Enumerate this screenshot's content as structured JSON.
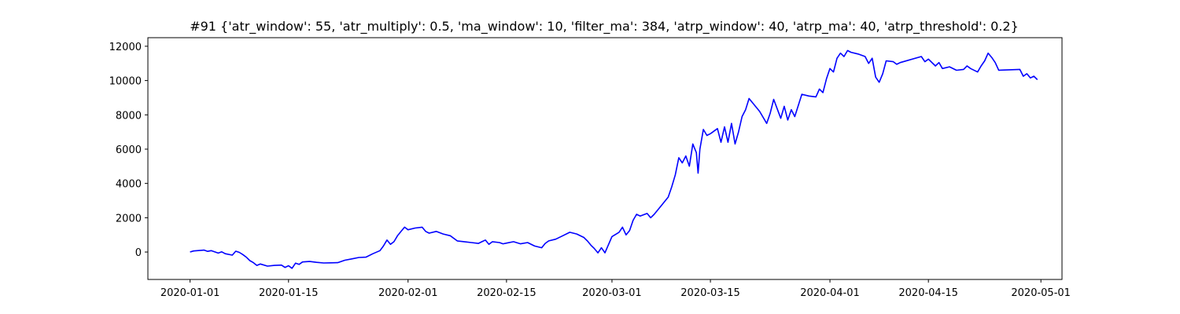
{
  "chart_data": {
    "type": "line",
    "title": "#91 {'atr_window': 55, 'atr_multiply': 0.5, 'ma_window': 10, 'filter_ma': 384, 'atrp_window': 40, 'atrp_ma': 40, 'atrp_threshold': 0.2}",
    "xlabel": "",
    "ylabel": "",
    "x_axis": {
      "type": "date",
      "range": [
        "2019-12-26",
        "2020-05-04"
      ],
      "ticks": [
        "2020-01-01",
        "2020-01-15",
        "2020-02-01",
        "2020-02-15",
        "2020-03-01",
        "2020-03-15",
        "2020-04-01",
        "2020-04-15",
        "2020-05-01"
      ]
    },
    "y_axis": {
      "range": [
        -1600,
        12500
      ],
      "ticks": [
        0,
        2000,
        4000,
        6000,
        8000,
        10000,
        12000
      ]
    },
    "grid": false,
    "legend": "none",
    "series": [
      {
        "color": "#0000ff",
        "points": [
          [
            "2020-01-01",
            0
          ],
          [
            "2020-01-01T12",
            60
          ],
          [
            "2020-01-02",
            80
          ],
          [
            "2020-01-03",
            110
          ],
          [
            "2020-01-03T12",
            40
          ],
          [
            "2020-01-04",
            80
          ],
          [
            "2020-01-05",
            -60
          ],
          [
            "2020-01-05T12",
            10
          ],
          [
            "2020-01-06",
            -100
          ],
          [
            "2020-01-07",
            -180
          ],
          [
            "2020-01-07T12",
            50
          ],
          [
            "2020-01-08",
            -20
          ],
          [
            "2020-01-08T12",
            -150
          ],
          [
            "2020-01-09",
            -300
          ],
          [
            "2020-01-09T12",
            -500
          ],
          [
            "2020-01-10",
            -620
          ],
          [
            "2020-01-10T12",
            -780
          ],
          [
            "2020-01-11",
            -700
          ],
          [
            "2020-01-12",
            -820
          ],
          [
            "2020-01-13",
            -780
          ],
          [
            "2020-01-14",
            -760
          ],
          [
            "2020-01-14T12",
            -900
          ],
          [
            "2020-01-15",
            -800
          ],
          [
            "2020-01-15T12",
            -950
          ],
          [
            "2020-01-16",
            -650
          ],
          [
            "2020-01-16T12",
            -720
          ],
          [
            "2020-01-17",
            -580
          ],
          [
            "2020-01-18",
            -550
          ],
          [
            "2020-01-19",
            -600
          ],
          [
            "2020-01-20",
            -640
          ],
          [
            "2020-01-21",
            -630
          ],
          [
            "2020-01-22",
            -620
          ],
          [
            "2020-01-23",
            -480
          ],
          [
            "2020-01-24",
            -400
          ],
          [
            "2020-01-25",
            -320
          ],
          [
            "2020-01-26",
            -300
          ],
          [
            "2020-01-27",
            -100
          ],
          [
            "2020-01-28",
            80
          ],
          [
            "2020-01-28T12",
            350
          ],
          [
            "2020-01-29",
            700
          ],
          [
            "2020-01-29T12",
            450
          ],
          [
            "2020-01-30",
            600
          ],
          [
            "2020-01-30T12",
            950
          ],
          [
            "2020-01-31",
            1200
          ],
          [
            "2020-01-31T12",
            1450
          ],
          [
            "2020-02-01",
            1300
          ],
          [
            "2020-02-02",
            1400
          ],
          [
            "2020-02-03",
            1450
          ],
          [
            "2020-02-03T12",
            1200
          ],
          [
            "2020-02-04",
            1100
          ],
          [
            "2020-02-05",
            1200
          ],
          [
            "2020-02-06",
            1050
          ],
          [
            "2020-02-07",
            950
          ],
          [
            "2020-02-08",
            650
          ],
          [
            "2020-02-09",
            600
          ],
          [
            "2020-02-10",
            550
          ],
          [
            "2020-02-11",
            500
          ],
          [
            "2020-02-11T12",
            600
          ],
          [
            "2020-02-12",
            700
          ],
          [
            "2020-02-12T12",
            450
          ],
          [
            "2020-02-13",
            600
          ],
          [
            "2020-02-14",
            550
          ],
          [
            "2020-02-14T12",
            480
          ],
          [
            "2020-02-15",
            520
          ],
          [
            "2020-02-16",
            600
          ],
          [
            "2020-02-17",
            480
          ],
          [
            "2020-02-18",
            550
          ],
          [
            "2020-02-19",
            350
          ],
          [
            "2020-02-20",
            250
          ],
          [
            "2020-02-20T12",
            500
          ],
          [
            "2020-02-21",
            650
          ],
          [
            "2020-02-22",
            750
          ],
          [
            "2020-02-23",
            950
          ],
          [
            "2020-02-24",
            1150
          ],
          [
            "2020-02-25",
            1050
          ],
          [
            "2020-02-26",
            850
          ],
          [
            "2020-02-26T12",
            650
          ],
          [
            "2020-02-27",
            400
          ],
          [
            "2020-02-27T12",
            200
          ],
          [
            "2020-02-28",
            -50
          ],
          [
            "2020-02-28T12",
            250
          ],
          [
            "2020-02-29",
            -50
          ],
          [
            "2020-03-01",
            900
          ],
          [
            "2020-03-02",
            1150
          ],
          [
            "2020-03-02T12",
            1450
          ],
          [
            "2020-03-03",
            1000
          ],
          [
            "2020-03-03T12",
            1250
          ],
          [
            "2020-03-04",
            1850
          ],
          [
            "2020-03-04T12",
            2200
          ],
          [
            "2020-03-05",
            2100
          ],
          [
            "2020-03-06",
            2250
          ],
          [
            "2020-03-06T12",
            2000
          ],
          [
            "2020-03-07",
            2200
          ],
          [
            "2020-03-08",
            2700
          ],
          [
            "2020-03-09",
            3200
          ],
          [
            "2020-03-09T12",
            3800
          ],
          [
            "2020-03-10",
            4500
          ],
          [
            "2020-03-10T12",
            5500
          ],
          [
            "2020-03-11",
            5200
          ],
          [
            "2020-03-11T12",
            5600
          ],
          [
            "2020-03-12",
            5000
          ],
          [
            "2020-03-12T12",
            6300
          ],
          [
            "2020-03-13",
            5800
          ],
          [
            "2020-03-13T06",
            4600
          ],
          [
            "2020-03-13T12",
            6000
          ],
          [
            "2020-03-14",
            7150
          ],
          [
            "2020-03-14T12",
            6800
          ],
          [
            "2020-03-15",
            6900
          ],
          [
            "2020-03-16",
            7200
          ],
          [
            "2020-03-16T12",
            6400
          ],
          [
            "2020-03-17",
            7300
          ],
          [
            "2020-03-17T12",
            6400
          ],
          [
            "2020-03-18",
            7500
          ],
          [
            "2020-03-18T12",
            6300
          ],
          [
            "2020-03-19",
            7000
          ],
          [
            "2020-03-19T12",
            7900
          ],
          [
            "2020-03-20",
            8300
          ],
          [
            "2020-03-20T12",
            8950
          ],
          [
            "2020-03-21",
            8700
          ],
          [
            "2020-03-22",
            8200
          ],
          [
            "2020-03-23",
            7500
          ],
          [
            "2020-03-23T12",
            8100
          ],
          [
            "2020-03-24",
            8900
          ],
          [
            "2020-03-25",
            7800
          ],
          [
            "2020-03-25T12",
            8500
          ],
          [
            "2020-03-26",
            7700
          ],
          [
            "2020-03-26T12",
            8300
          ],
          [
            "2020-03-27",
            7900
          ],
          [
            "2020-03-28",
            9200
          ],
          [
            "2020-03-29",
            9100
          ],
          [
            "2020-03-30",
            9050
          ],
          [
            "2020-03-30T12",
            9500
          ],
          [
            "2020-03-31",
            9300
          ],
          [
            "2020-03-31T12",
            10100
          ],
          [
            "2020-04-01",
            10700
          ],
          [
            "2020-04-01T12",
            10500
          ],
          [
            "2020-04-02",
            11300
          ],
          [
            "2020-04-02T12",
            11600
          ],
          [
            "2020-04-03",
            11400
          ],
          [
            "2020-04-03T12",
            11750
          ],
          [
            "2020-04-04",
            11650
          ],
          [
            "2020-04-05",
            11550
          ],
          [
            "2020-04-06",
            11400
          ],
          [
            "2020-04-06T12",
            11000
          ],
          [
            "2020-04-07",
            11300
          ],
          [
            "2020-04-07T12",
            10200
          ],
          [
            "2020-04-08",
            9900
          ],
          [
            "2020-04-08T12",
            10400
          ],
          [
            "2020-04-09",
            11150
          ],
          [
            "2020-04-10",
            11100
          ],
          [
            "2020-04-10T12",
            10950
          ],
          [
            "2020-04-11",
            11050
          ],
          [
            "2020-04-14",
            11400
          ],
          [
            "2020-04-14T12",
            11100
          ],
          [
            "2020-04-15",
            11250
          ],
          [
            "2020-04-16",
            10850
          ],
          [
            "2020-04-16T12",
            11050
          ],
          [
            "2020-04-17",
            10700
          ],
          [
            "2020-04-18",
            10800
          ],
          [
            "2020-04-19",
            10600
          ],
          [
            "2020-04-20",
            10650
          ],
          [
            "2020-04-20T12",
            10850
          ],
          [
            "2020-04-21",
            10700
          ],
          [
            "2020-04-22",
            10500
          ],
          [
            "2020-04-22T12",
            10850
          ],
          [
            "2020-04-23",
            11150
          ],
          [
            "2020-04-23T12",
            11600
          ],
          [
            "2020-04-24",
            11350
          ],
          [
            "2020-04-24T12",
            11050
          ],
          [
            "2020-04-25",
            10600
          ],
          [
            "2020-04-28",
            10650
          ],
          [
            "2020-04-28T12",
            10250
          ],
          [
            "2020-04-29",
            10400
          ],
          [
            "2020-04-29T12",
            10150
          ],
          [
            "2020-04-30",
            10250
          ],
          [
            "2020-04-30T12",
            10050
          ]
        ]
      }
    ]
  }
}
